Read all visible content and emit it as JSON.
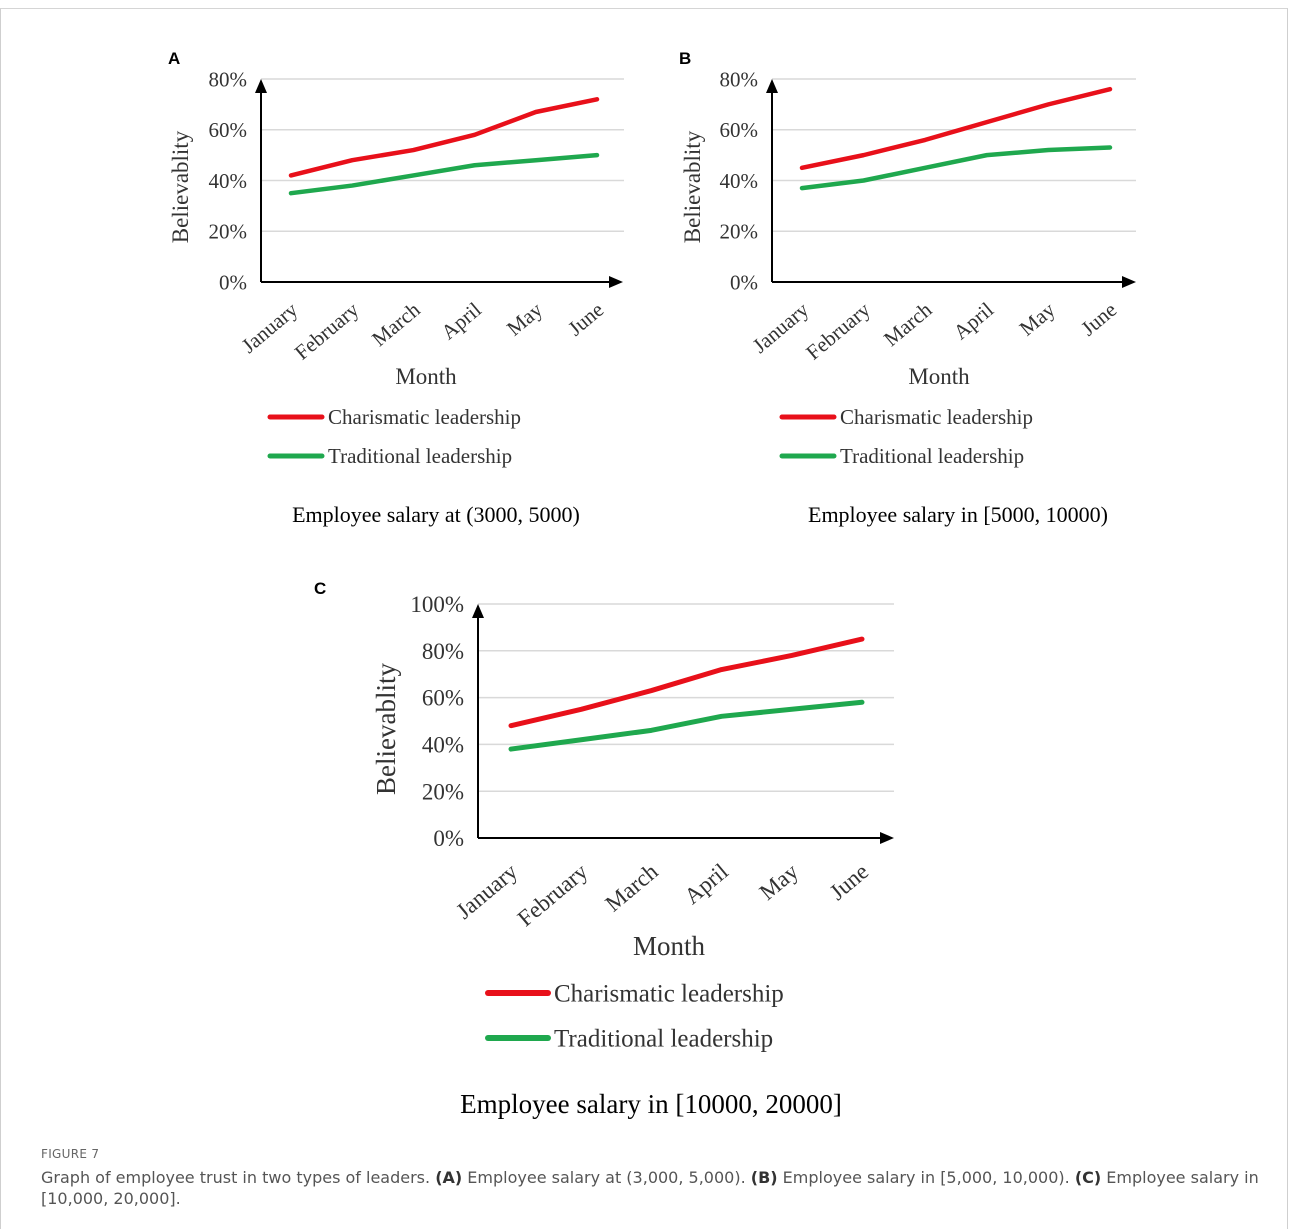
{
  "figure": {
    "label": "FIGURE 7",
    "caption": {
      "intro": "Graph of employee trust in two types of leaders.",
      "parts": [
        {
          "tag": "(A)",
          "text": " Employee salary at (3,000, 5,000). "
        },
        {
          "tag": "(B)",
          "text": " Employee salary in [5,000, 10,000). "
        },
        {
          "tag": "(C)",
          "text": " Employee salary in [10,000, 20,000]."
        }
      ]
    }
  },
  "colors": {
    "charismatic": "#e8101a",
    "traditional": "#1fa84e",
    "grid": "#d9d9d9",
    "axis": "#000000"
  },
  "chart_data": [
    {
      "panel": "A",
      "type": "line",
      "categories": [
        "January",
        "February",
        "March",
        "April",
        "May",
        "June"
      ],
      "series": [
        {
          "name": "Charismatic leadership",
          "values": [
            42,
            48,
            52,
            58,
            67,
            72
          ]
        },
        {
          "name": "Traditional leadership",
          "values": [
            35,
            38,
            42,
            46,
            48,
            50
          ]
        }
      ],
      "xlabel": "Month",
      "ylabel": "Believablity",
      "ylim": [
        0,
        80
      ],
      "yticks": [
        "0%",
        "20%",
        "40%",
        "60%",
        "80%"
      ],
      "subtitle": "Employee salary at (3000, 5000)",
      "grid": true,
      "legend": "bottom"
    },
    {
      "panel": "B",
      "type": "line",
      "categories": [
        "January",
        "February",
        "March",
        "April",
        "May",
        "June"
      ],
      "series": [
        {
          "name": "Charismatic leadership",
          "values": [
            45,
            50,
            56,
            63,
            70,
            76
          ]
        },
        {
          "name": "Traditional leadership",
          "values": [
            37,
            40,
            45,
            50,
            52,
            53
          ]
        }
      ],
      "xlabel": "Month",
      "ylabel": "Believablity",
      "ylim": [
        0,
        80
      ],
      "yticks": [
        "0%",
        "20%",
        "40%",
        "60%",
        "80%"
      ],
      "subtitle": "Employee salary in [5000, 10000)",
      "grid": true,
      "legend": "bottom"
    },
    {
      "panel": "C",
      "type": "line",
      "categories": [
        "January",
        "February",
        "March",
        "April",
        "May",
        "June"
      ],
      "series": [
        {
          "name": "Charismatic leadership",
          "values": [
            48,
            55,
            63,
            72,
            78,
            85
          ]
        },
        {
          "name": "Traditional leadership",
          "values": [
            38,
            42,
            46,
            52,
            55,
            58
          ]
        }
      ],
      "xlabel": "Month",
      "ylabel": "Believablity",
      "ylim": [
        0,
        100
      ],
      "yticks": [
        "0%",
        "20%",
        "40%",
        "60%",
        "80%",
        "100%"
      ],
      "subtitle": "Employee salary in [10000, 20000]",
      "grid": true,
      "legend": "bottom"
    }
  ]
}
